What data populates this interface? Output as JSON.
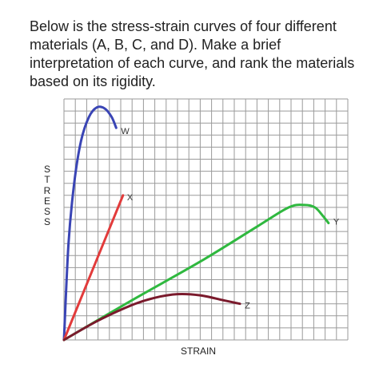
{
  "question": "Below is the stress-strain curves of four different materials (A, B, C, and D). Make a brief interpretation of each curve, and rank the materials based on its rigidity.",
  "chart_data": {
    "type": "line",
    "title": "",
    "xlabel": "STRAIN",
    "ylabel": "STRESS",
    "xlim": [
      0,
      25
    ],
    "ylim": [
      0,
      20
    ],
    "grid": true,
    "series": [
      {
        "name": "W",
        "color": "#3a45b5",
        "points": [
          [
            0,
            0
          ],
          [
            0.4,
            8
          ],
          [
            0.9,
            13
          ],
          [
            1.5,
            16.5
          ],
          [
            2.2,
            18.5
          ],
          [
            2.9,
            19.3
          ],
          [
            3.6,
            19.2
          ],
          [
            4.2,
            18.5
          ],
          [
            4.6,
            17.6
          ]
        ]
      },
      {
        "name": "X",
        "color": "#e23b3b",
        "points": [
          [
            0,
            0
          ],
          [
            5.2,
            12
          ]
        ]
      },
      {
        "name": "Y",
        "color": "#2fb83f",
        "points": [
          [
            0,
            0
          ],
          [
            6,
            3.3
          ],
          [
            12,
            6.5
          ],
          [
            17,
            9.4
          ],
          [
            19.8,
            11
          ],
          [
            21.2,
            11.2
          ],
          [
            22.1,
            11
          ],
          [
            22.8,
            10.3
          ],
          [
            23.3,
            9.7
          ]
        ]
      },
      {
        "name": "Z",
        "color": "#7a1a2c",
        "points": [
          [
            0,
            0
          ],
          [
            3,
            1.6
          ],
          [
            6,
            2.9
          ],
          [
            8,
            3.5
          ],
          [
            10,
            3.8
          ],
          [
            12,
            3.7
          ],
          [
            14,
            3.3
          ],
          [
            15.5,
            3
          ]
        ]
      }
    ]
  }
}
